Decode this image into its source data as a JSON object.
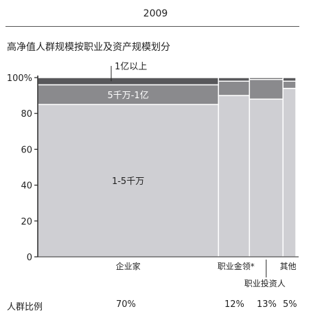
{
  "header": {
    "year": "2009",
    "subtitle": "高净值人群规模按职业及资产规模划分"
  },
  "colors": {
    "bottom": "#cfcfd3",
    "middle": "#8a8a8d",
    "top": "#58585b",
    "axis": "#222222",
    "gap": "#ffffff"
  },
  "chart_data": {
    "type": "bar",
    "subtype": "marimekko",
    "ylim": [
      0,
      100
    ],
    "yticks": [
      "0",
      "20",
      "40",
      "60",
      "80",
      "100%"
    ],
    "ytick_values": [
      0,
      20,
      40,
      60,
      80,
      100
    ],
    "categories": [
      "企业家",
      "职业金领*",
      "职业投资人",
      "其他"
    ],
    "widths": [
      70,
      12,
      13,
      5
    ],
    "width_labels": [
      "70%",
      "12%",
      "13%",
      "5%"
    ],
    "width_row_label": "人群比例",
    "series": [
      {
        "name": "1-5千万",
        "values": [
          85,
          90,
          88,
          94
        ]
      },
      {
        "name": "5千万-1亿",
        "values": [
          11,
          8,
          11,
          4
        ]
      },
      {
        "name": "1亿以上",
        "values": [
          4,
          2,
          1,
          2
        ]
      }
    ]
  }
}
